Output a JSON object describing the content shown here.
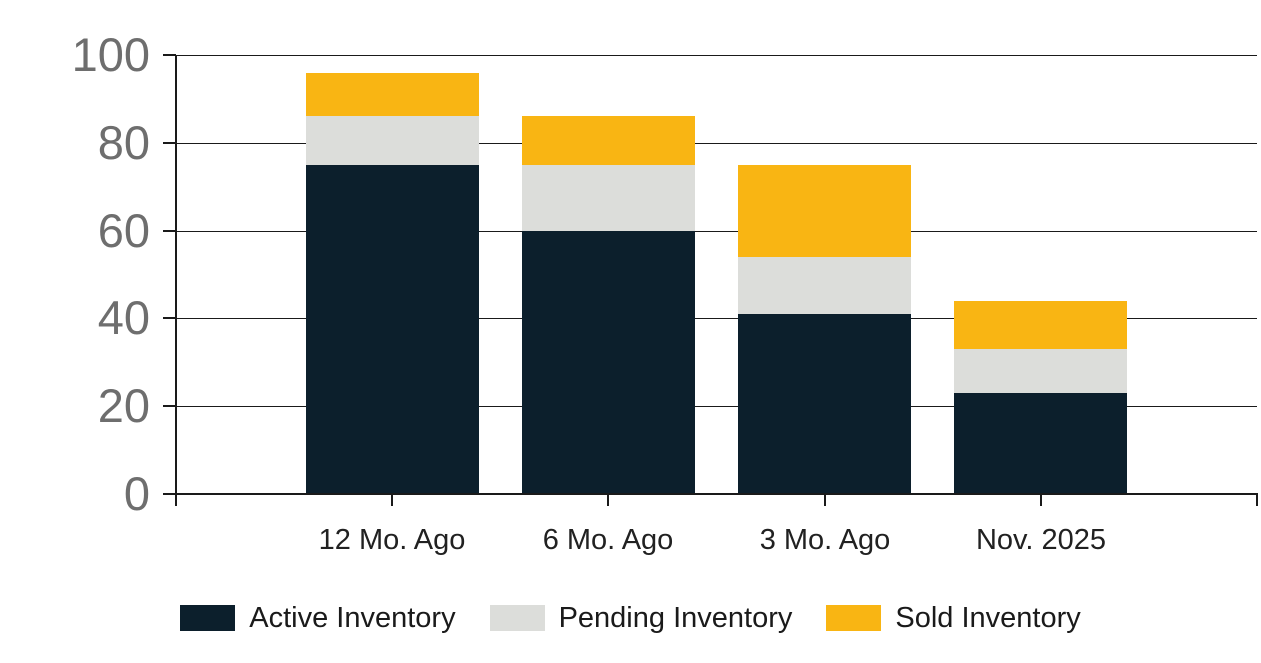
{
  "chart_data": {
    "type": "bar",
    "stacked": true,
    "title": "",
    "xlabel": "",
    "ylabel": "",
    "categories": [
      "12 Mo. Ago",
      "6 Mo. Ago",
      "3 Mo. Ago",
      "Nov. 2025"
    ],
    "series": [
      {
        "name": "Active Inventory",
        "color": "#0c1f2c",
        "values": [
          75,
          60,
          41,
          23
        ]
      },
      {
        "name": "Pending Inventory",
        "color": "#dcddda",
        "values": [
          11,
          15,
          13,
          10
        ]
      },
      {
        "name": "Sold Inventory",
        "color": "#f9b513",
        "values": [
          10,
          11,
          21,
          11
        ]
      }
    ],
    "stack_totals": [
      96,
      86,
      75,
      44
    ],
    "ylim": [
      0,
      100
    ],
    "yticks": [
      0,
      20,
      40,
      60,
      80,
      100
    ],
    "grid": "horizontal",
    "legend_position": "bottom"
  },
  "colors": {
    "background": "#ffffff",
    "axis_line": "#1a1a1a",
    "gridline": "#1a1a1a",
    "y_tick_label": "#6e6e6e",
    "x_tick_label": "#212121",
    "legend_text": "#1a1a1a"
  }
}
